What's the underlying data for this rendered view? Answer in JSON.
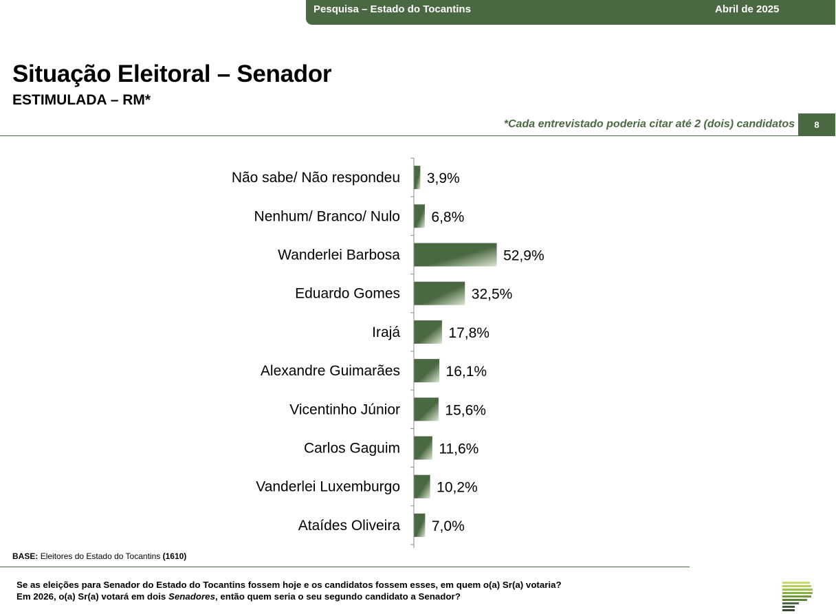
{
  "header": {
    "survey_label": "Pesquisa – Estado do Tocantins",
    "date_label": "Abril de 2025"
  },
  "title": "Situação Eleitoral – Senador",
  "subtitle": "ESTIMULADA – RM*",
  "note": "*Cada entrevistado poderia citar até 2 (dois) candidatos",
  "page_number": "8",
  "base": {
    "label": "BASE:",
    "text": "Eleitores do Estado do Tocantins",
    "count": "(1610)"
  },
  "question": {
    "line1": "Se as eleições para Senador do Estado do Tocantins fossem hoje e os candidatos fossem esses, em quem o(a) Sr(a) votaria?",
    "line2_before": "Em 2026, o(a) Sr(a) votará em dois ",
    "line2_italic": "Senadores",
    "line2_after": ", então quem seria o seu segundo candidato a Senador?"
  },
  "colors": {
    "brand_green": "#4a6841",
    "bar_dark": "#4a6841",
    "bar_light": "#dbe8d3"
  },
  "chart_data": {
    "type": "bar",
    "orientation": "horizontal",
    "categories": [
      "Não sabe/ Não respondeu",
      "Nenhum/ Branco/ Nulo",
      "Wanderlei Barbosa",
      "Eduardo Gomes",
      "Irajá",
      "Alexandre Guimarães",
      "Vicentinho Júnior",
      "Carlos Gaguim",
      "Vanderlei Luxemburgo",
      "Ataídes Oliveira"
    ],
    "values": [
      3.9,
      6.8,
      52.9,
      32.5,
      17.8,
      16.1,
      15.6,
      11.6,
      10.2,
      7.0
    ],
    "labels": [
      "3,9%",
      "6,8%",
      "52,9%",
      "32,5%",
      "17,8%",
      "16,1%",
      "15,6%",
      "11,6%",
      "10,2%",
      "7,0%"
    ],
    "unit": "%"
  }
}
